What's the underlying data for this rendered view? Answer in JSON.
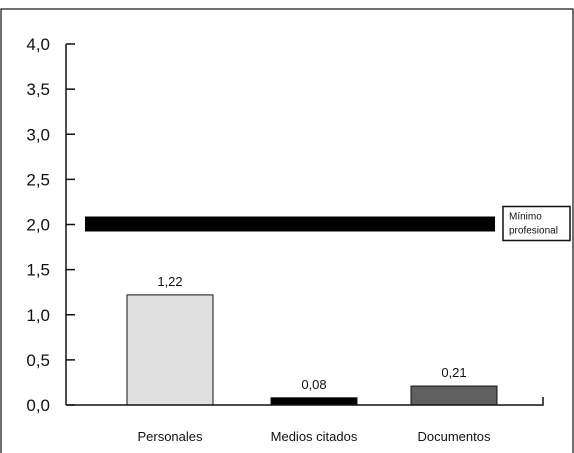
{
  "chart_data": {
    "type": "bar",
    "categories": [
      "Personales",
      "Medios citados",
      "Documentos"
    ],
    "values": [
      1.22,
      0.08,
      0.21
    ],
    "value_labels": [
      "1,22",
      "0,08",
      "0,21"
    ],
    "bar_colors": [
      "#e0e0e0",
      "#000000",
      "#606060"
    ],
    "ylim": [
      0,
      4
    ],
    "yticks": [
      0,
      0.5,
      1,
      1.5,
      2,
      2.5,
      3,
      3.5,
      4
    ],
    "ytick_labels": [
      "0,0",
      "0,5",
      "1,0",
      "1,5",
      "2,0",
      "2,5",
      "3,0",
      "3,5",
      "4,0"
    ],
    "reference_line": {
      "value": 2.0,
      "color": "#000000",
      "label_line1": "Mínimo",
      "label_line2": "profesional"
    },
    "title": "",
    "xlabel": "",
    "ylabel": "",
    "grid": false
  }
}
